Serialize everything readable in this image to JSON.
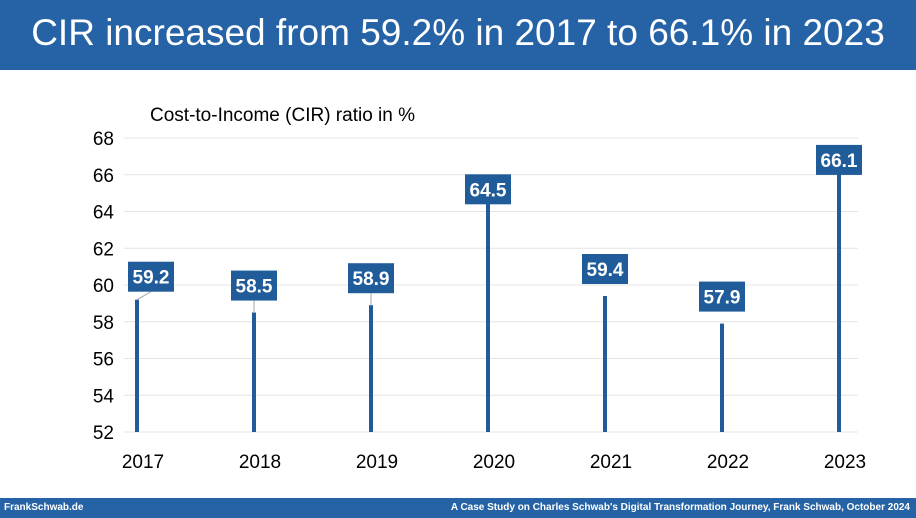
{
  "header": {
    "title": "CIR increased from 59.2% in 2017 to 66.1% in 2023"
  },
  "footer": {
    "left": "FrankSchwab.de",
    "right": "A Case Study on Charles Schwab's Digital Transformation Journey, Frank Schwab, October 2024"
  },
  "chart_data": {
    "type": "bar",
    "title": "Cost-to-Income (CIR) ratio in %",
    "categories": [
      "2017",
      "2018",
      "2019",
      "2020",
      "2021",
      "2022",
      "2023"
    ],
    "values": [
      59.2,
      58.5,
      58.9,
      64.5,
      59.4,
      57.9,
      66.1
    ],
    "value_labels": [
      "59.2",
      "58.5",
      "58.9",
      "64.5",
      "59.4",
      "57.9",
      "66.1"
    ],
    "ylim": [
      52,
      68
    ],
    "yticks": [
      "52",
      "54",
      "56",
      "58",
      "60",
      "62",
      "64",
      "66",
      "68"
    ],
    "grid": true,
    "colors": {
      "bar": "#1f5c99",
      "label_bg": "#1f5c99",
      "label_text": "#ffffff",
      "grid": "#e4e4e4",
      "leader": "#a6a6a6"
    }
  }
}
